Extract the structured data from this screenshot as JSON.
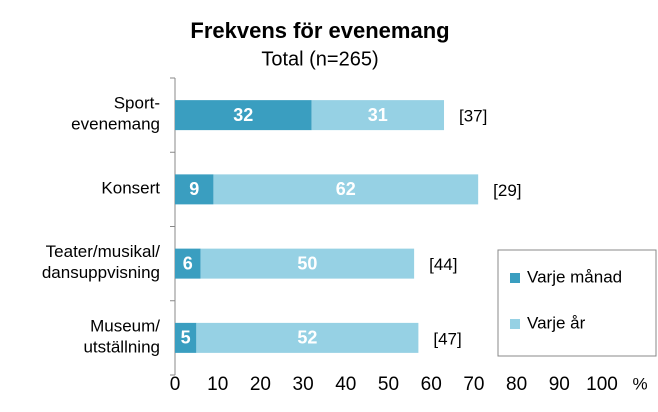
{
  "chart_data": {
    "type": "stacked-bar-horizontal",
    "title": "Frekvens för evenemang",
    "subtitle": "Total (n=265)",
    "categories": [
      "Sport-\nevenemang",
      "Konsert",
      "Teater/musikal/\ndansuppvisning",
      "Museum/\nutställning"
    ],
    "series": [
      {
        "name": "Varje månad",
        "color": "#3a9ec0",
        "values": [
          32,
          9,
          6,
          5
        ]
      },
      {
        "name": "Varje år",
        "color": "#96d1e4",
        "values": [
          31,
          62,
          50,
          52
        ]
      }
    ],
    "annotations": [
      "[37]",
      "[29]",
      "[44]",
      "[47]"
    ],
    "xlabel": "%",
    "xlim": [
      0,
      100
    ],
    "xticks": [
      0,
      10,
      20,
      30,
      40,
      50,
      60,
      70,
      80,
      90,
      100
    ],
    "legend": "right"
  }
}
